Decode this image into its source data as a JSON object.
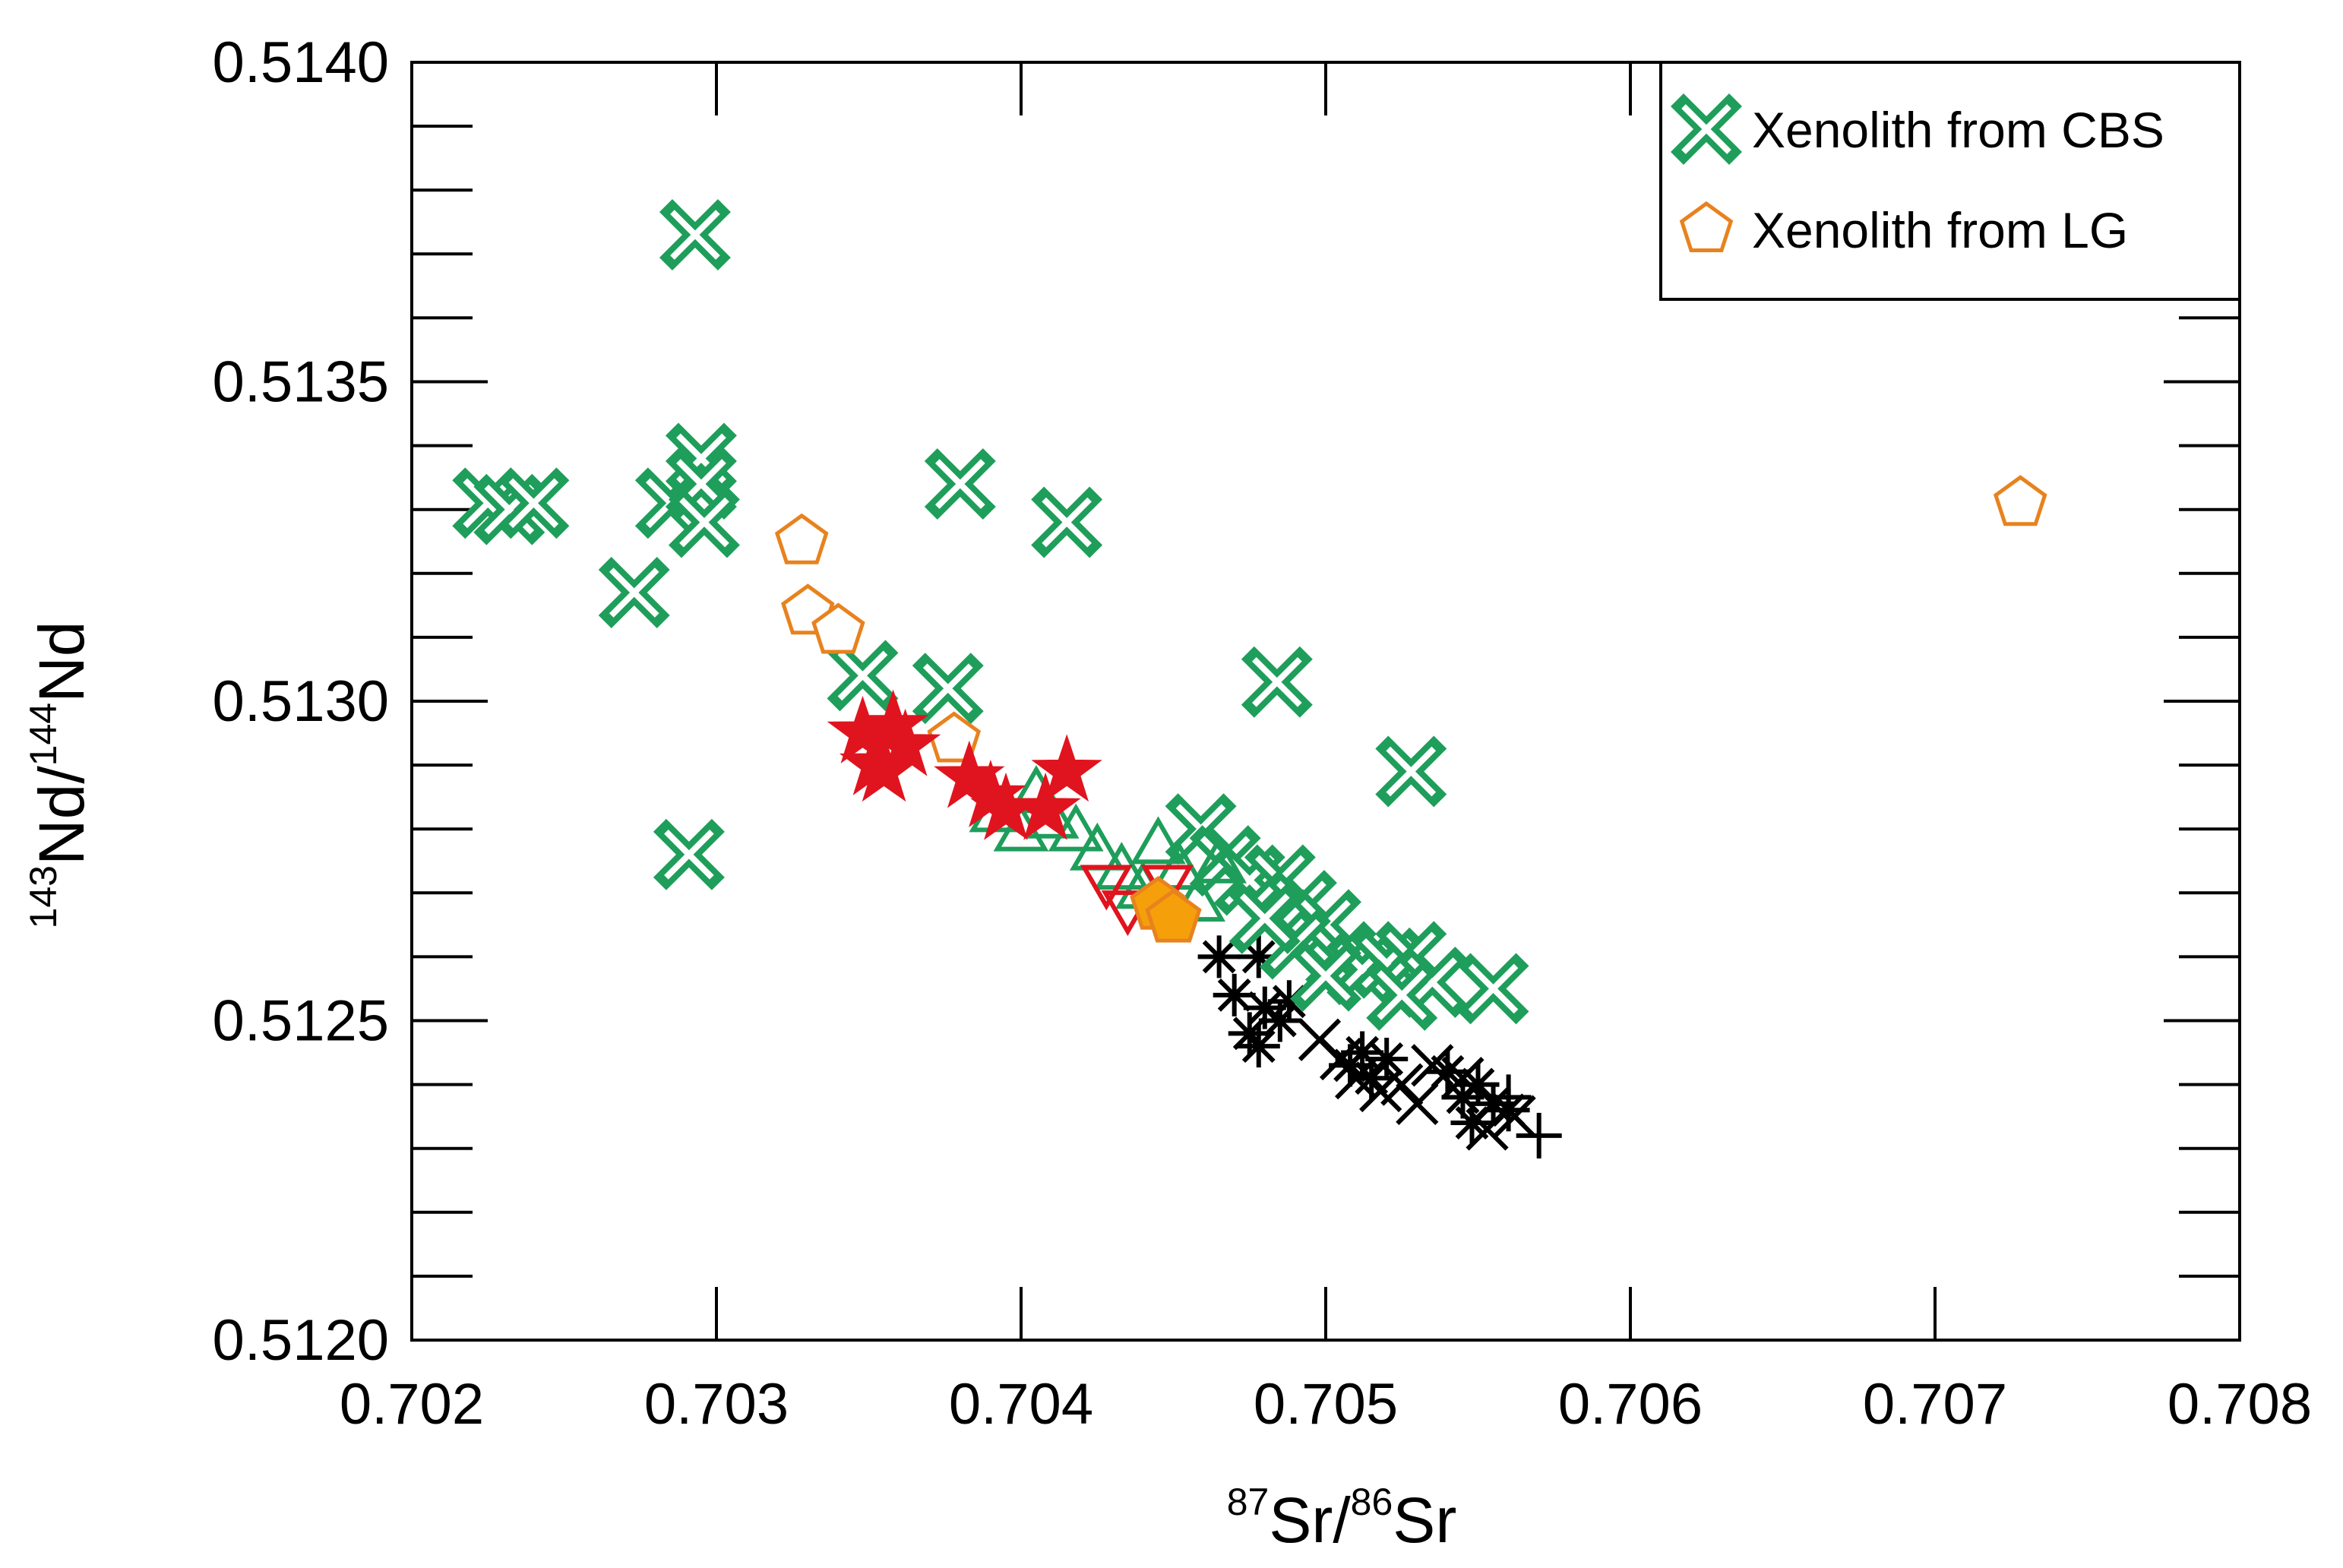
{
  "chart_data": {
    "type": "scatter",
    "title": "",
    "xlabel": {
      "sup1": "87",
      "t1": "Sr/",
      "sup2": "86",
      "t2": "Sr"
    },
    "ylabel": {
      "sup1": "143",
      "t1": "Nd/",
      "sup2": "144",
      "t2": "Nd"
    },
    "xlim": [
      0.702,
      0.708
    ],
    "ylim": [
      0.512,
      0.514
    ],
    "xticks": [
      0.702,
      0.703,
      0.704,
      0.705,
      0.706,
      0.707,
      0.708
    ],
    "xtick_labels": [
      "0.702",
      "0.703",
      "0.704",
      "0.705",
      "0.706",
      "0.707",
      "0.708"
    ],
    "yticks": [
      0.512,
      0.5125,
      0.513,
      0.5135,
      0.514
    ],
    "ytick_labels": [
      "0.5120",
      "0.5125",
      "0.5130",
      "0.5135",
      "0.5140"
    ],
    "y_minor_step": 0.0001,
    "legend": {
      "position": "top-right",
      "entries": [
        {
          "label": "Xenolith from CBS",
          "marker": "xbox",
          "color": "#1e9e5a"
        },
        {
          "label": "Xenolith from LG",
          "marker": "pentagon-open",
          "color": "#e8821e"
        }
      ]
    },
    "series": [
      {
        "name": "Xenolith from CBS",
        "marker": "xbox",
        "color": "#1e9e5a",
        "points": [
          [
            0.70293,
            0.51373
          ],
          [
            0.70225,
            0.51331
          ],
          [
            0.70232,
            0.5133
          ],
          [
            0.7024,
            0.51331
          ],
          [
            0.70285,
            0.51331
          ],
          [
            0.70295,
            0.51338
          ],
          [
            0.70295,
            0.51334
          ],
          [
            0.70296,
            0.51328
          ],
          [
            0.70273,
            0.51317
          ],
          [
            0.7038,
            0.51334
          ],
          [
            0.70415,
            0.51328
          ],
          [
            0.70348,
            0.51304
          ],
          [
            0.70376,
            0.51302
          ],
          [
            0.70484,
            0.51303
          ],
          [
            0.70528,
            0.51289
          ],
          [
            0.70291,
            0.51276
          ],
          [
            0.70459,
            0.5128
          ],
          [
            0.70467,
            0.51275
          ],
          [
            0.70475,
            0.51272
          ],
          [
            0.70485,
            0.51272
          ],
          [
            0.70492,
            0.51268
          ],
          [
            0.705,
            0.51265
          ],
          [
            0.70505,
            0.5126
          ],
          [
            0.70512,
            0.51258
          ],
          [
            0.7052,
            0.51259
          ],
          [
            0.70528,
            0.5126
          ],
          [
            0.70535,
            0.51256
          ],
          [
            0.70555,
            0.51255
          ],
          [
            0.7049,
            0.51262
          ],
          [
            0.705,
            0.51257
          ],
          [
            0.70525,
            0.51254
          ],
          [
            0.7048,
            0.51266
          ]
        ]
      },
      {
        "name": "Xenolith from LG",
        "marker": "pentagon-open",
        "color": "#e8821e",
        "points": [
          [
            0.70328,
            0.51325
          ],
          [
            0.7033,
            0.51314
          ],
          [
            0.7034,
            0.51311
          ],
          [
            0.70378,
            0.51294
          ],
          [
            0.70728,
            0.51331
          ]
        ]
      },
      {
        "name": "Filled pentagon",
        "marker": "pentagon-filled",
        "color": "#f5a00a",
        "points": [
          [
            0.70445,
            0.51268
          ],
          [
            0.7045,
            0.51266
          ]
        ]
      },
      {
        "name": "Open triangles",
        "marker": "triangle-open",
        "color": "#1e9e5a",
        "points": [
          [
            0.70392,
            0.51282
          ],
          [
            0.704,
            0.51279
          ],
          [
            0.70405,
            0.51285
          ],
          [
            0.7041,
            0.51281
          ],
          [
            0.70418,
            0.51279
          ],
          [
            0.70425,
            0.51276
          ],
          [
            0.70433,
            0.51273
          ],
          [
            0.7044,
            0.5127
          ],
          [
            0.70445,
            0.51277
          ],
          [
            0.70452,
            0.51273
          ],
          [
            0.70458,
            0.51268
          ],
          [
            0.70465,
            0.51274
          ]
        ]
      },
      {
        "name": "Open down triangles",
        "marker": "triangle-down-open",
        "color": "#e0141e",
        "points": [
          [
            0.70428,
            0.51272
          ],
          [
            0.70435,
            0.51268
          ],
          [
            0.70448,
            0.51272
          ]
        ]
      },
      {
        "name": "Red stars",
        "marker": "star",
        "color": "#e0141e",
        "points": [
          [
            0.70348,
            0.51295
          ],
          [
            0.70352,
            0.5129
          ],
          [
            0.70358,
            0.51296
          ],
          [
            0.70355,
            0.51289
          ],
          [
            0.70383,
            0.51288
          ],
          [
            0.7039,
            0.51285
          ],
          [
            0.70395,
            0.51283
          ],
          [
            0.70408,
            0.51283
          ],
          [
            0.70415,
            0.51289
          ],
          [
            0.70362,
            0.51293
          ]
        ]
      },
      {
        "name": "Black asterisks",
        "marker": "asterisk",
        "color": "#000000",
        "points": [
          [
            0.70465,
            0.5126
          ],
          [
            0.70478,
            0.5126
          ],
          [
            0.7047,
            0.51254
          ],
          [
            0.7048,
            0.51252
          ],
          [
            0.70475,
            0.51248
          ],
          [
            0.70485,
            0.5125
          ],
          [
            0.70488,
            0.51253
          ],
          [
            0.70478,
            0.51246
          ],
          [
            0.70508,
            0.51243
          ],
          [
            0.70515,
            0.51241
          ],
          [
            0.7052,
            0.51244
          ],
          [
            0.70512,
            0.51245
          ],
          [
            0.7054,
            0.51242
          ],
          [
            0.70545,
            0.51238
          ],
          [
            0.7055,
            0.5124
          ],
          [
            0.70555,
            0.51237
          ],
          [
            0.7056,
            0.51236
          ],
          [
            0.70548,
            0.51234
          ]
        ]
      },
      {
        "name": "Black crosses",
        "marker": "x",
        "color": "#000000",
        "points": [
          [
            0.70498,
            0.51247
          ],
          [
            0.70505,
            0.51244
          ],
          [
            0.7051,
            0.51241
          ],
          [
            0.70518,
            0.51239
          ],
          [
            0.70525,
            0.5124
          ],
          [
            0.7053,
            0.51237
          ],
          [
            0.70535,
            0.51243
          ],
          [
            0.70545,
            0.51241
          ],
          [
            0.70553,
            0.51233
          ],
          [
            0.70562,
            0.51235
          ]
        ]
      },
      {
        "name": "Black plus",
        "marker": "plus",
        "color": "#000000",
        "points": [
          [
            0.7057,
            0.51232
          ],
          [
            0.7056,
            0.51238
          ]
        ]
      }
    ]
  }
}
